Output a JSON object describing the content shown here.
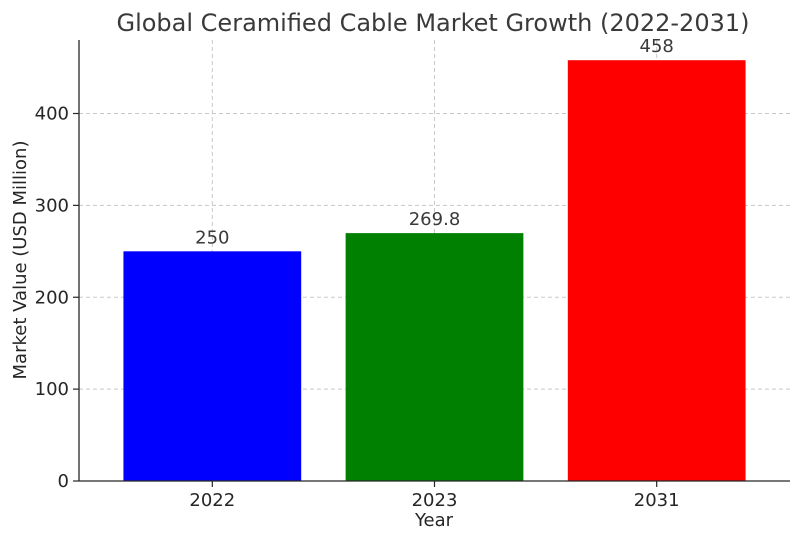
{
  "chart_data": {
    "type": "bar",
    "title": "Global Ceramified Cable Market Growth (2022-2031)",
    "xlabel": "Year",
    "ylabel": "Market Value (USD Million)",
    "categories": [
      "2022",
      "2023",
      "2031"
    ],
    "values": [
      250,
      269.8,
      458
    ],
    "value_labels": [
      "250",
      "269.8",
      "458"
    ],
    "colors": [
      "#0000ff",
      "#008000",
      "#ff0000"
    ],
    "ylim": [
      0,
      480
    ],
    "yticks": [
      0,
      100,
      200,
      300,
      400
    ],
    "grid": true,
    "legend": "none"
  }
}
